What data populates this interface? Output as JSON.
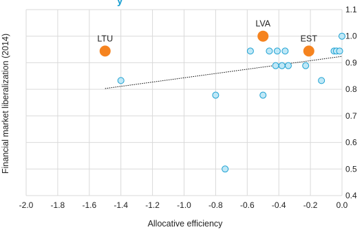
{
  "chart_data": {
    "type": "scatter",
    "title": "y",
    "xlabel": "Allocative efficiency",
    "ylabel": "Financial market liberalization (2014)",
    "xlim": [
      -2.0,
      0.0
    ],
    "ylim": [
      0.4,
      1.1
    ],
    "x_ticks": [
      "-2.0",
      "-1.8",
      "-1.6",
      "-1.4",
      "-1.2",
      "-1.0",
      "-0.8",
      "-0.6",
      "-0.4",
      "-0.2",
      "0.0"
    ],
    "y_ticks": [
      "0.4",
      "0.5",
      "0.6",
      "0.7",
      "0.8",
      "0.9",
      "1.0",
      "1.1"
    ],
    "grid": true,
    "colors": {
      "highlight": "#f5831f",
      "other_fill": "#bfe8f7",
      "other_stroke": "#1a9fd1",
      "grid": "#d9d9d9",
      "trend": "#000000",
      "title": "#1a9fd1"
    },
    "series": [
      {
        "style": "highlighted",
        "points": [
          {
            "label": "LTU",
            "x": -1.5,
            "y": 0.944
          },
          {
            "label": "LVA",
            "x": -0.5,
            "y": 1.0
          },
          {
            "label": "EST",
            "x": -0.21,
            "y": 0.944
          }
        ]
      },
      {
        "style": "other",
        "points": [
          {
            "x": -1.4,
            "y": 0.833
          },
          {
            "x": -0.8,
            "y": 0.778
          },
          {
            "x": -0.74,
            "y": 0.5
          },
          {
            "x": -0.58,
            "y": 0.944
          },
          {
            "x": -0.5,
            "y": 0.778
          },
          {
            "x": -0.46,
            "y": 0.944
          },
          {
            "x": -0.42,
            "y": 0.889
          },
          {
            "x": -0.41,
            "y": 0.944
          },
          {
            "x": -0.38,
            "y": 0.889
          },
          {
            "x": -0.36,
            "y": 0.944
          },
          {
            "x": -0.34,
            "y": 0.889
          },
          {
            "x": -0.23,
            "y": 0.889
          },
          {
            "x": -0.13,
            "y": 0.833
          },
          {
            "x": -0.05,
            "y": 0.944
          },
          {
            "x": -0.035,
            "y": 0.944
          },
          {
            "x": -0.015,
            "y": 0.944
          },
          {
            "x": -0.0,
            "y": 1.0
          }
        ]
      }
    ],
    "trendline": {
      "x": [
        -1.5,
        0.0
      ],
      "y": [
        0.803,
        0.924
      ],
      "style": "dotted"
    }
  }
}
